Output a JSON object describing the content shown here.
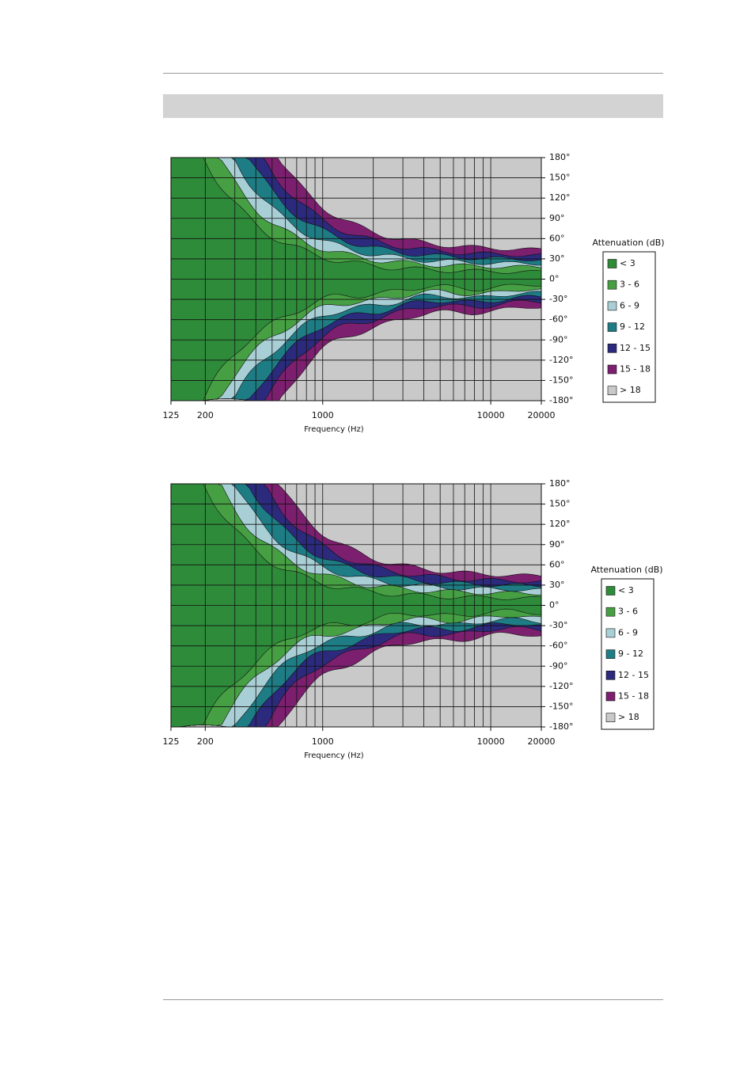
{
  "chart_data": [
    {
      "type": "contour",
      "x_label": "Frequency (Hz)",
      "legend_title": "Attenuation (dB)",
      "xscale": "log",
      "xlim": [
        125,
        20000
      ],
      "xticks": [
        125,
        200,
        1000,
        10000,
        20000
      ],
      "xgrid": [
        200,
        300,
        400,
        500,
        600,
        700,
        800,
        900,
        1000,
        2000,
        3000,
        4000,
        5000,
        6000,
        7000,
        8000,
        9000,
        10000,
        20000
      ],
      "ylim": [
        -180,
        180
      ],
      "yticks": [
        {
          "value": 180,
          "label": "180°"
        },
        {
          "value": 150,
          "label": "150°"
        },
        {
          "value": 120,
          "label": "120°"
        },
        {
          "value": 90,
          "label": "90°"
        },
        {
          "value": 60,
          "label": "60°"
        },
        {
          "value": 30,
          "label": "30°"
        },
        {
          "value": 0,
          "label": "0°"
        },
        {
          "value": -30,
          "label": "-30°"
        },
        {
          "value": -60,
          "label": "-60°"
        },
        {
          "value": -90,
          "label": "-90°"
        },
        {
          "value": -120,
          "label": "-120°"
        },
        {
          "value": -150,
          "label": "-150°"
        },
        {
          "value": -180,
          "label": "-180°"
        }
      ],
      "grid": true,
      "series": [
        {
          "name": "< 3",
          "color": "#2e8b3a"
        },
        {
          "name": "3 - 6",
          "color": "#46a043"
        },
        {
          "name": "6 - 9",
          "color": "#a9cfd6"
        },
        {
          "name": "9 - 12",
          "color": "#1e7c84"
        },
        {
          "name": "12 - 15",
          "color": "#2b2a7c"
        },
        {
          "name": "15 - 18",
          "color": "#7c1f6f"
        },
        {
          "name": "> 18",
          "color": "#c9c9c9"
        }
      ]
    },
    {
      "type": "contour",
      "x_label": "Frequency (Hz)",
      "legend_title": "Attenuation (dB)",
      "xscale": "log",
      "xlim": [
        125,
        20000
      ],
      "xticks": [
        125,
        200,
        1000,
        10000,
        20000
      ],
      "xgrid": [
        200,
        300,
        400,
        500,
        600,
        700,
        800,
        900,
        1000,
        2000,
        3000,
        4000,
        5000,
        6000,
        7000,
        8000,
        9000,
        10000,
        20000
      ],
      "ylim": [
        -180,
        180
      ],
      "yticks": [
        {
          "value": 180,
          "label": "180°"
        },
        {
          "value": 150,
          "label": "150°"
        },
        {
          "value": 120,
          "label": "120°"
        },
        {
          "value": 90,
          "label": "90°"
        },
        {
          "value": 60,
          "label": "60°"
        },
        {
          "value": 30,
          "label": "30°"
        },
        {
          "value": 0,
          "label": "0°"
        },
        {
          "value": -30,
          "label": "-30°"
        },
        {
          "value": -60,
          "label": "-60°"
        },
        {
          "value": -90,
          "label": "-90°"
        },
        {
          "value": -120,
          "label": "-120°"
        },
        {
          "value": -150,
          "label": "-150°"
        },
        {
          "value": -180,
          "label": "-180°"
        }
      ],
      "grid": true,
      "series": [
        {
          "name": "< 3",
          "color": "#2e8b3a"
        },
        {
          "name": "3 - 6",
          "color": "#46a043"
        },
        {
          "name": "6 - 9",
          "color": "#a9cfd6"
        },
        {
          "name": "9 - 12",
          "color": "#1e7c84"
        },
        {
          "name": "12 - 15",
          "color": "#2b2a7c"
        },
        {
          "name": "15 - 18",
          "color": "#7c1f6f"
        },
        {
          "name": "> 18",
          "color": "#c9c9c9"
        }
      ]
    }
  ]
}
